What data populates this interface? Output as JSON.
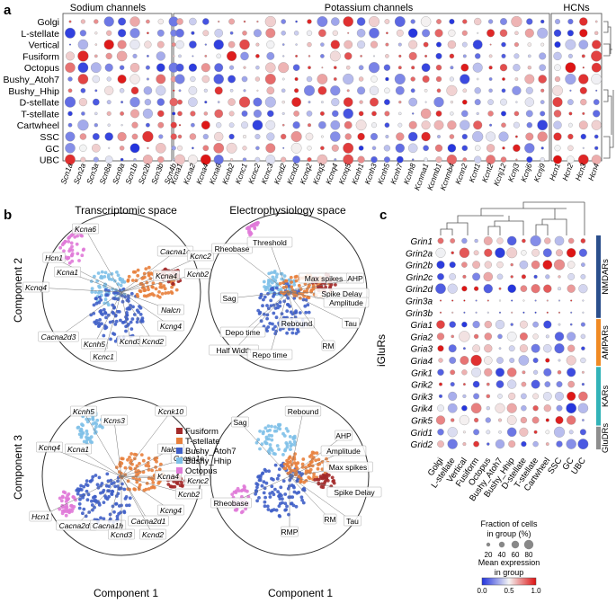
{
  "panel_a": {
    "letter": "a",
    "group_titles": [
      "Sodium channels",
      "Potassium channels",
      "HCNs"
    ],
    "rows": [
      "Golgi",
      "L-stellate",
      "Vertical",
      "Fusiform",
      "Octopus",
      "Bushy_Atoh7",
      "Bushy_Hhip",
      "D-stellate",
      "T-stellate",
      "Cartwheel",
      "SSC",
      "GC",
      "UBC"
    ],
    "sodium_genes": [
      "Scn1a",
      "Scn2a",
      "Scn3a",
      "Scn8a",
      "Scn9a",
      "Scn1b",
      "Scn2b",
      "Scn3b",
      "Scn4b"
    ],
    "potassium_genes": [
      "Kcna1",
      "Kcna2",
      "Kcna4",
      "Kcna6",
      "Kcnb2",
      "Kcnc1",
      "Kcnc2",
      "Kcnc3",
      "Kcnd2",
      "Kcnd3",
      "Kcnq2",
      "Kcnq3",
      "Kcnq4",
      "Kcnq5",
      "Kcnh1",
      "Kcnh3",
      "Kcnh5",
      "Kcnh7",
      "Kcnh8",
      "Kcnma1",
      "Kcnmb1",
      "Kcnmb4",
      "Kcnn2",
      "Kcnt1",
      "Kcnt2",
      "Kcnj12",
      "Kcnj3",
      "Kcnj6",
      "Kcnj9"
    ],
    "hcn_genes": [
      "Hcn1",
      "Hcn2",
      "Hcn3",
      "Hcn4"
    ]
  },
  "panel_b": {
    "letter": "b",
    "titles": [
      "Transcriptomic space",
      "Electrophysiology space"
    ],
    "ylabel_top": "Component 2",
    "ylabel_bottom": "Component 3",
    "xlabel": "Component 1",
    "legend": [
      {
        "label": "Fusiform",
        "color": "#a32a2a"
      },
      {
        "label": "T-stellate",
        "color": "#e8803c"
      },
      {
        "label": "Bushy_Atoh7",
        "color": "#3f5fc8"
      },
      {
        "label": "Bushy_Hhip",
        "color": "#7ec0e8"
      },
      {
        "label": "Octopus",
        "color": "#e07ad8"
      }
    ],
    "tr_labels": [
      "Kcna6",
      "Hcn1",
      "Kcna1",
      "Kcnq4",
      "Cacna2d3",
      "Kcnh5",
      "Kcnd3",
      "Kcnc1",
      "Cacna1e",
      "Kcnc2",
      "Kcna4",
      "Kcnb2",
      "Nalcn",
      "Kcng4",
      "Kcnd2"
    ],
    "er_labels": [
      "Rheobase",
      "Threshold",
      "Sag",
      "Depo time",
      "Half Width",
      "Repo time",
      "Rebound",
      "Max spikes",
      "AHP",
      "Spike Delay",
      "Amplitude",
      "Tau",
      "RM"
    ],
    "tb_labels": [
      "Kcnh5",
      "Kcns3",
      "Kcnk10",
      "Kcnq4",
      "Kcna1",
      "Nalcn",
      "Cacna1e",
      "Hcn1",
      "Cacna2d3",
      "Kcnb2",
      "Kcnc2",
      "Kcna4",
      "Kcng4",
      "Cacna2d1",
      "Cacna1h",
      "Kcnd3",
      "Kcnd2"
    ],
    "eb_labels": [
      "Sag",
      "Rebound",
      "AHP",
      "Amplitude",
      "Max spikes",
      "Spike Delay",
      "Rheobase",
      "RM",
      "Tau",
      "RMP"
    ]
  },
  "panel_c": {
    "letter": "c",
    "genes": [
      "Grin1",
      "Grin2a",
      "Grin2b",
      "Grin2c",
      "Grin2d",
      "Grin3a",
      "Grin3b",
      "Gria1",
      "Gria2",
      "Gria3",
      "Gria4",
      "Grik1",
      "Grik2",
      "Grik3",
      "Grik4",
      "Grik5",
      "Grid1",
      "Grid2"
    ],
    "cells": [
      "Golgi",
      "L-stellate",
      "Vertical",
      "Fusiform",
      "Octopus",
      "Bushy_Atoh7",
      "Bushy_Hhip",
      "D-stellate",
      "T-stellate",
      "Cartwheel",
      "SSC",
      "GC",
      "UBC"
    ],
    "ylabel": "iGluRs",
    "groups": [
      {
        "label": "NMDARs",
        "color": "#2b4f8c"
      },
      {
        "label": "AMPARs",
        "color": "#f08a24"
      },
      {
        "label": "KARs",
        "color": "#32b3b8"
      },
      {
        "label": "GluDRs",
        "color": "#8e8e8e"
      }
    ],
    "size_legend": {
      "title_line1": "Fraction of cells",
      "title_line2": "in group (%)",
      "ticks": [
        "20",
        "40",
        "60",
        "80"
      ]
    },
    "color_legend": {
      "title_line1": "Mean expression",
      "title_line2": "in group",
      "ticks": [
        "0.0",
        "0.5",
        "1.0"
      ]
    }
  },
  "colors": {
    "low": "#2233dd",
    "mid": "#f4f4f4",
    "high": "#dd1111"
  }
}
